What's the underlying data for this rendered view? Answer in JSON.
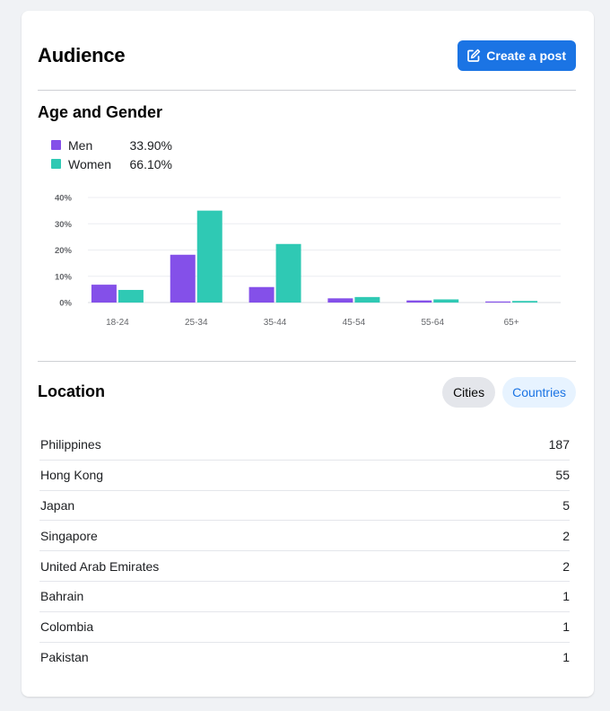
{
  "header": {
    "title": "Audience",
    "create_post_label": "Create a post",
    "create_post_icon": "edit-icon"
  },
  "age_gender": {
    "title": "Age and Gender",
    "legend": [
      {
        "name": "Men",
        "value": "33.90%",
        "color": "#8450e9"
      },
      {
        "name": "Women",
        "value": "66.10%",
        "color": "#2fc9b4"
      }
    ]
  },
  "chart_data": {
    "type": "bar",
    "categories": [
      "18-24",
      "25-34",
      "35-44",
      "45-54",
      "55-64",
      "65+"
    ],
    "series": [
      {
        "name": "Men",
        "color": "#8450e9",
        "values": [
          6.8,
          18.2,
          5.9,
          1.6,
          0.8,
          0.4
        ]
      },
      {
        "name": "Women",
        "color": "#2fc9b4",
        "values": [
          4.8,
          35.0,
          22.3,
          2.1,
          1.2,
          0.6
        ]
      }
    ],
    "y_ticks": [
      "0%",
      "10%",
      "20%",
      "30%",
      "40%"
    ],
    "ylim": [
      0,
      40
    ],
    "grid": true
  },
  "location": {
    "title": "Location",
    "tabs": [
      {
        "label": "Cities",
        "selected": false
      },
      {
        "label": "Countries",
        "selected": true
      }
    ],
    "rows": [
      {
        "name": "Philippines",
        "count": "187"
      },
      {
        "name": "Hong Kong",
        "count": "55"
      },
      {
        "name": "Japan",
        "count": "5"
      },
      {
        "name": "Singapore",
        "count": "2"
      },
      {
        "name": "United Arab Emirates",
        "count": "2"
      },
      {
        "name": "Bahrain",
        "count": "1"
      },
      {
        "name": "Colombia",
        "count": "1"
      },
      {
        "name": "Pakistan",
        "count": "1"
      }
    ]
  }
}
